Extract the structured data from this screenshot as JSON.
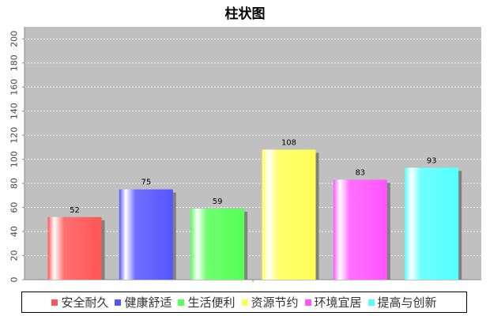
{
  "title": "柱状图",
  "chart_data": {
    "type": "bar",
    "title": "柱状图",
    "xlabel": "",
    "ylabel": "",
    "ylim": [
      0,
      210
    ],
    "yticks": [
      0,
      20,
      40,
      60,
      80,
      100,
      120,
      140,
      160,
      180,
      200
    ],
    "grid": true,
    "legend_position": "bottom",
    "categories": [
      "安全耐久",
      "健康舒适",
      "生活便利",
      "资源节约",
      "环境宜居",
      "提高与创新"
    ],
    "values": [
      52,
      75,
      59,
      108,
      83,
      93
    ],
    "colors": [
      "#ff5555",
      "#5555ff",
      "#55ff55",
      "#ffff55",
      "#ff55ff",
      "#55ffff"
    ]
  }
}
